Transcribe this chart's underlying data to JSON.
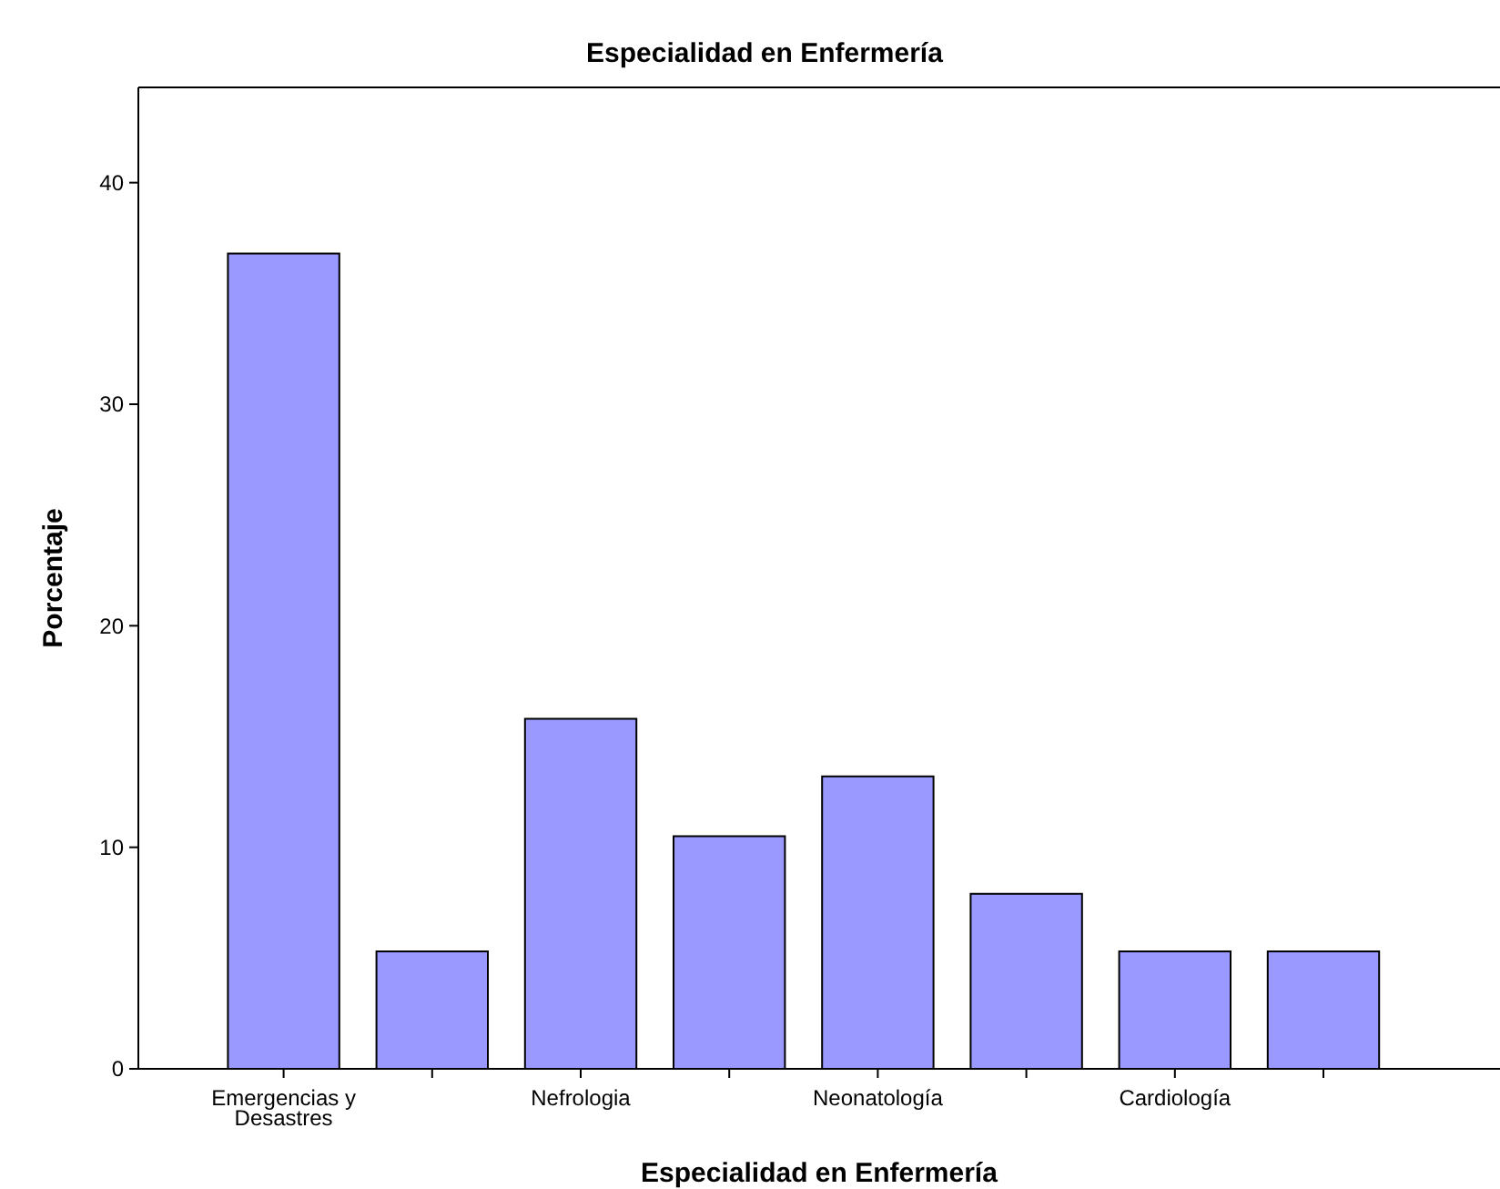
{
  "chart_data": {
    "type": "bar",
    "title": "Especialidad en Enfermería",
    "xlabel": "Especialidad en Enfermería",
    "ylabel": "Porcentaje",
    "categories": [
      "Emergencias y Desastres",
      null,
      "Nefrologia",
      null,
      "Neonatología",
      null,
      "Cardiología",
      null
    ],
    "values": [
      36.8,
      5.3,
      15.8,
      10.5,
      13.2,
      7.9,
      5.3,
      5.3
    ],
    "color": "#9999ff",
    "ylim": [
      0,
      44.3
    ],
    "yticks": [
      0,
      10,
      20,
      30,
      40
    ],
    "grid": false
  }
}
